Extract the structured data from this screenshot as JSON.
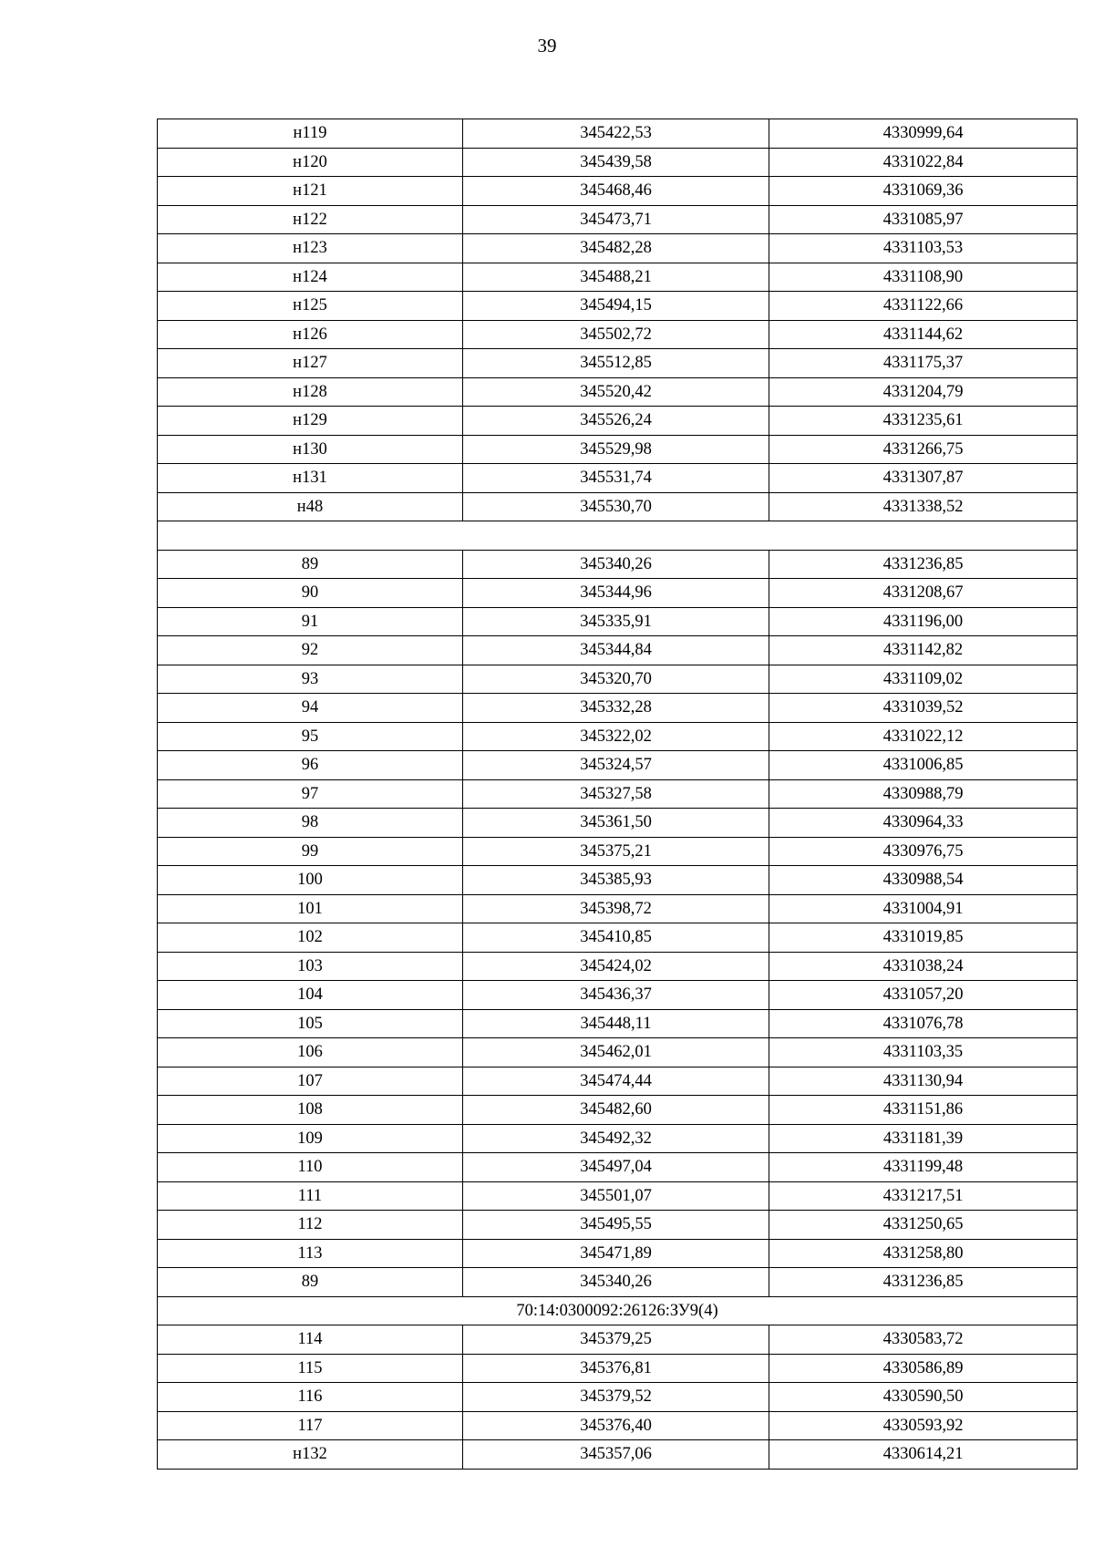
{
  "page_number": "39",
  "rows": [
    {
      "type": "row",
      "cells": [
        "н119",
        "345422,53",
        "4330999,64"
      ]
    },
    {
      "type": "row",
      "cells": [
        "н120",
        "345439,58",
        "4331022,84"
      ]
    },
    {
      "type": "row",
      "cells": [
        "н121",
        "345468,46",
        "4331069,36"
      ]
    },
    {
      "type": "row",
      "cells": [
        "н122",
        "345473,71",
        "4331085,97"
      ]
    },
    {
      "type": "row",
      "cells": [
        "н123",
        "345482,28",
        "4331103,53"
      ]
    },
    {
      "type": "row",
      "cells": [
        "н124",
        "345488,21",
        "4331108,90"
      ]
    },
    {
      "type": "row",
      "cells": [
        "н125",
        "345494,15",
        "4331122,66"
      ]
    },
    {
      "type": "row",
      "cells": [
        "н126",
        "345502,72",
        "4331144,62"
      ]
    },
    {
      "type": "row",
      "cells": [
        "н127",
        "345512,85",
        "4331175,37"
      ]
    },
    {
      "type": "row",
      "cells": [
        "н128",
        "345520,42",
        "4331204,79"
      ]
    },
    {
      "type": "row",
      "cells": [
        "н129",
        "345526,24",
        "4331235,61"
      ]
    },
    {
      "type": "row",
      "cells": [
        "н130",
        "345529,98",
        "4331266,75"
      ]
    },
    {
      "type": "row",
      "cells": [
        "н131",
        "345531,74",
        "4331307,87"
      ]
    },
    {
      "type": "row",
      "cells": [
        "н48",
        "345530,70",
        "4331338,52"
      ]
    },
    {
      "type": "section",
      "label": ""
    },
    {
      "type": "row",
      "cells": [
        "89",
        "345340,26",
        "4331236,85"
      ]
    },
    {
      "type": "row",
      "cells": [
        "90",
        "345344,96",
        "4331208,67"
      ]
    },
    {
      "type": "row",
      "cells": [
        "91",
        "345335,91",
        "4331196,00"
      ]
    },
    {
      "type": "row",
      "cells": [
        "92",
        "345344,84",
        "4331142,82"
      ]
    },
    {
      "type": "row",
      "cells": [
        "93",
        "345320,70",
        "4331109,02"
      ]
    },
    {
      "type": "row",
      "cells": [
        "94",
        "345332,28",
        "4331039,52"
      ]
    },
    {
      "type": "row",
      "cells": [
        "95",
        "345322,02",
        "4331022,12"
      ]
    },
    {
      "type": "row",
      "cells": [
        "96",
        "345324,57",
        "4331006,85"
      ]
    },
    {
      "type": "row",
      "cells": [
        "97",
        "345327,58",
        "4330988,79"
      ]
    },
    {
      "type": "row",
      "cells": [
        "98",
        "345361,50",
        "4330964,33"
      ]
    },
    {
      "type": "row",
      "cells": [
        "99",
        "345375,21",
        "4330976,75"
      ]
    },
    {
      "type": "row",
      "cells": [
        "100",
        "345385,93",
        "4330988,54"
      ]
    },
    {
      "type": "row",
      "cells": [
        "101",
        "345398,72",
        "4331004,91"
      ]
    },
    {
      "type": "row",
      "cells": [
        "102",
        "345410,85",
        "4331019,85"
      ]
    },
    {
      "type": "row",
      "cells": [
        "103",
        "345424,02",
        "4331038,24"
      ]
    },
    {
      "type": "row",
      "cells": [
        "104",
        "345436,37",
        "4331057,20"
      ]
    },
    {
      "type": "row",
      "cells": [
        "105",
        "345448,11",
        "4331076,78"
      ]
    },
    {
      "type": "row",
      "cells": [
        "106",
        "345462,01",
        "4331103,35"
      ]
    },
    {
      "type": "row",
      "cells": [
        "107",
        "345474,44",
        "4331130,94"
      ]
    },
    {
      "type": "row",
      "cells": [
        "108",
        "345482,60",
        "4331151,86"
      ]
    },
    {
      "type": "row",
      "cells": [
        "109",
        "345492,32",
        "4331181,39"
      ]
    },
    {
      "type": "row",
      "cells": [
        "110",
        "345497,04",
        "4331199,48"
      ]
    },
    {
      "type": "row",
      "cells": [
        "111",
        "345501,07",
        "4331217,51"
      ]
    },
    {
      "type": "row",
      "cells": [
        "112",
        "345495,55",
        "4331250,65"
      ]
    },
    {
      "type": "row",
      "cells": [
        "113",
        "345471,89",
        "4331258,80"
      ]
    },
    {
      "type": "row",
      "cells": [
        "89",
        "345340,26",
        "4331236,85"
      ]
    },
    {
      "type": "section",
      "label": "70:14:0300092:26126:ЗУ9(4)"
    },
    {
      "type": "row",
      "cells": [
        "114",
        "345379,25",
        "4330583,72"
      ]
    },
    {
      "type": "row",
      "cells": [
        "115",
        "345376,81",
        "4330586,89"
      ]
    },
    {
      "type": "row",
      "cells": [
        "116",
        "345379,52",
        "4330590,50"
      ]
    },
    {
      "type": "row",
      "cells": [
        "117",
        "345376,40",
        "4330593,92"
      ]
    },
    {
      "type": "row",
      "cells": [
        "н132",
        "345357,06",
        "4330614,21"
      ]
    }
  ]
}
